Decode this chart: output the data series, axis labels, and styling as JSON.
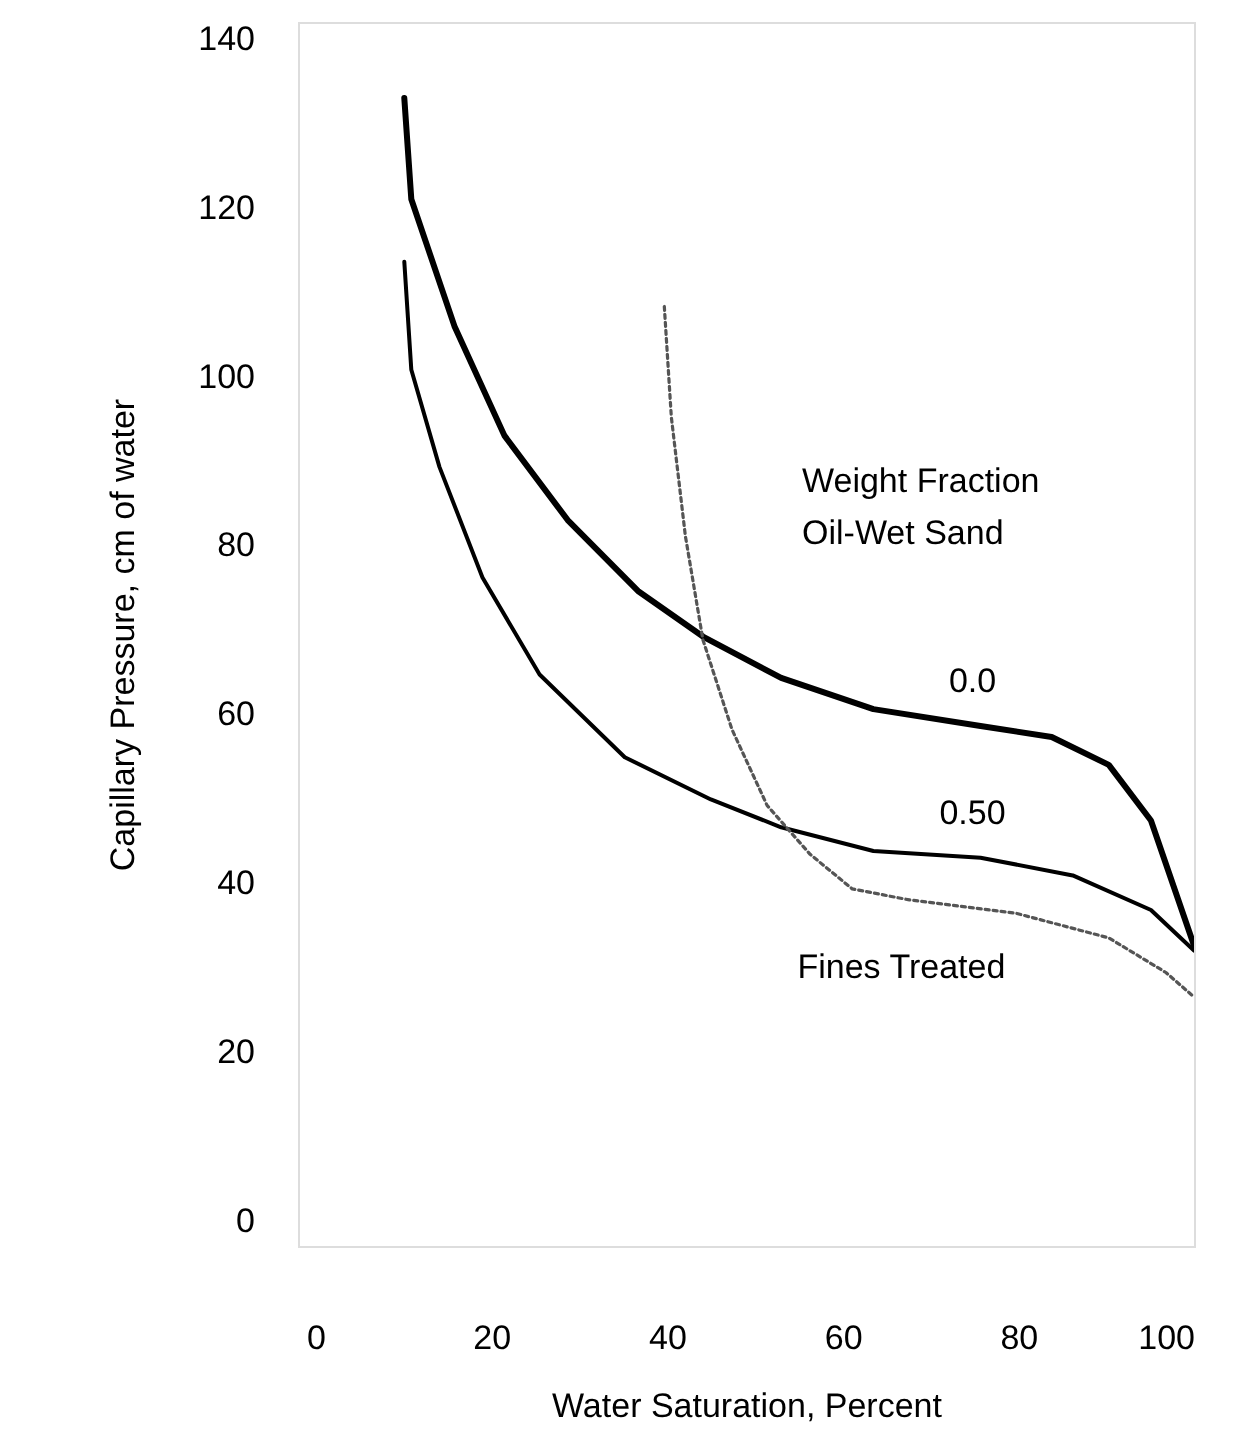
{
  "chart_data": {
    "type": "line",
    "xlabel": "Water Saturation,  Percent",
    "ylabel": "Capillary Pressure,  cm of water",
    "legend_title": "Weight Fraction Oil-Wet Sand",
    "xlim": [
      -2,
      100
    ],
    "xticks": [
      0,
      20,
      40,
      60,
      80,
      100
    ],
    "ylim": [
      -3,
      142
    ],
    "yticks": [
      0,
      20,
      40,
      60,
      80,
      100,
      120,
      140
    ],
    "grid": false,
    "legend": false,
    "marker": "none",
    "series": [
      {
        "name": "0.0",
        "color": "#000000",
        "line_style": "solid",
        "x": [
          10.1,
          10.9,
          15.8,
          21.5,
          28.7,
          36.7,
          44.1,
          53,
          63.5,
          75.7,
          83.8,
          90.3,
          95.1,
          100
        ],
        "values": [
          133,
          121,
          106,
          93,
          83,
          74.6,
          69.2,
          64.3,
          60.6,
          58.6,
          57.3,
          54,
          47.4,
          32.6
        ]
      },
      {
        "name": "0.50",
        "color": "#000000",
        "line_style": "solid",
        "x": [
          10.1,
          10.9,
          14.1,
          19,
          25.5,
          35.2,
          45,
          53,
          63.5,
          75.7,
          86.2,
          95.1,
          100
        ],
        "values": [
          113.6,
          100.8,
          89.3,
          76.2,
          64.7,
          54.9,
          49.9,
          46.6,
          43.8,
          43,
          40.9,
          36.8,
          32
        ]
      },
      {
        "name": "Fines Treated",
        "color": "#555555",
        "line_style": "dotted",
        "x": [
          39.7,
          40.5,
          42.1,
          44.1,
          47.4,
          51.4,
          56.3,
          61.1,
          67.6,
          79.8,
          90.3,
          96.8,
          100
        ],
        "values": [
          108.3,
          95.2,
          81.1,
          68.8,
          58.2,
          49.2,
          43.4,
          39.3,
          38,
          36.4,
          33.5,
          29.4,
          26.5
        ]
      }
    ]
  }
}
